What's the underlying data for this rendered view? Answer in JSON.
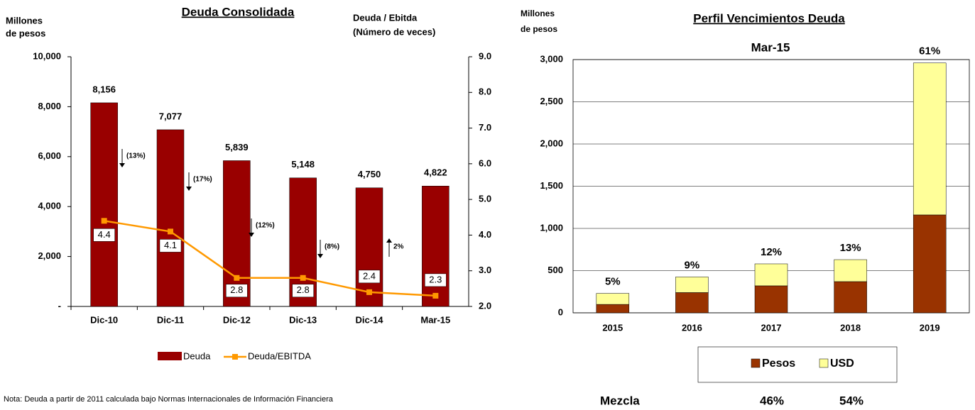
{
  "chart_data": [
    {
      "type": "bar_line",
      "title": "Deuda Consolidada",
      "y_label": [
        "Millones",
        "de pesos"
      ],
      "y2_label": [
        "Deuda / Ebitda",
        "(Número de veces)"
      ],
      "categories": [
        "Dic-10",
        "Dic-11",
        "Dic-12",
        "Dic-13",
        "Dic-14",
        "Mar-15"
      ],
      "series": [
        {
          "name": "Deuda",
          "color": "#990000",
          "values": [
            8156,
            7077,
            5839,
            5148,
            4750,
            4822
          ],
          "value_labels": [
            "8,156",
            "7,077",
            "5,839",
            "5,148",
            "4,750",
            "4,822"
          ]
        },
        {
          "name": "Deuda/EBITDA",
          "color": "#ff9900",
          "axis": "y2",
          "values": [
            4.4,
            4.1,
            2.8,
            2.8,
            2.4,
            2.3
          ]
        }
      ],
      "ylim": [
        0,
        10000
      ],
      "yticks": [
        {
          "value": 0,
          "label": "-"
        },
        {
          "value": 2000,
          "label": "2,000"
        },
        {
          "value": 4000,
          "label": "4,000"
        },
        {
          "value": 6000,
          "label": "6,000"
        },
        {
          "value": 8000,
          "label": "8,000"
        },
        {
          "value": 10000,
          "label": "10,000"
        }
      ],
      "y2lim": [
        2,
        9
      ],
      "y2ticks": [
        {
          "value": 2,
          "label": "2.0"
        },
        {
          "value": 3,
          "label": "3.0"
        },
        {
          "value": 4,
          "label": "4.0"
        },
        {
          "value": 5,
          "label": "5.0"
        },
        {
          "value": 6,
          "label": "6.0"
        },
        {
          "value": 7,
          "label": "7.0"
        },
        {
          "value": 8,
          "label": "8.0"
        },
        {
          "value": 9,
          "label": "9.0"
        }
      ],
      "annotations": [
        "(13%)",
        "(17%)",
        "(12%)",
        "(8%)",
        "2%"
      ],
      "note": "Nota: Deuda a partir de 2011 calculada bajo Normas Internacionales de Información Financiera"
    },
    {
      "type": "stacked_bar",
      "title": "Perfil Vencimientos Deuda",
      "subtitle": "Mar-15",
      "y_label": [
        "Millones",
        "de pesos"
      ],
      "categories": [
        "2015",
        "2016",
        "2017",
        "2018",
        "2019"
      ],
      "series": [
        {
          "name": "Pesos",
          "color": "#993300",
          "values": [
            100,
            240,
            320,
            370,
            1160
          ]
        },
        {
          "name": "USD",
          "color": "#ffff99",
          "values": [
            130,
            185,
            260,
            260,
            1800
          ]
        }
      ],
      "ylim": [
        0,
        3000
      ],
      "yticks": [
        0,
        500,
        {
          "value": 1000,
          "label": "1,000"
        },
        {
          "value": 1500,
          "label": "1,500"
        },
        {
          "value": 2000,
          "label": "2,000"
        },
        {
          "value": 2500,
          "label": "2,500"
        },
        {
          "value": 3000,
          "label": "3,000"
        }
      ],
      "grid": true,
      "annotations": [
        "5%",
        "9%",
        "12%",
        "13%",
        "61%"
      ],
      "mix_label": "Mezcla",
      "mix": [
        "46%",
        "54%"
      ]
    }
  ]
}
